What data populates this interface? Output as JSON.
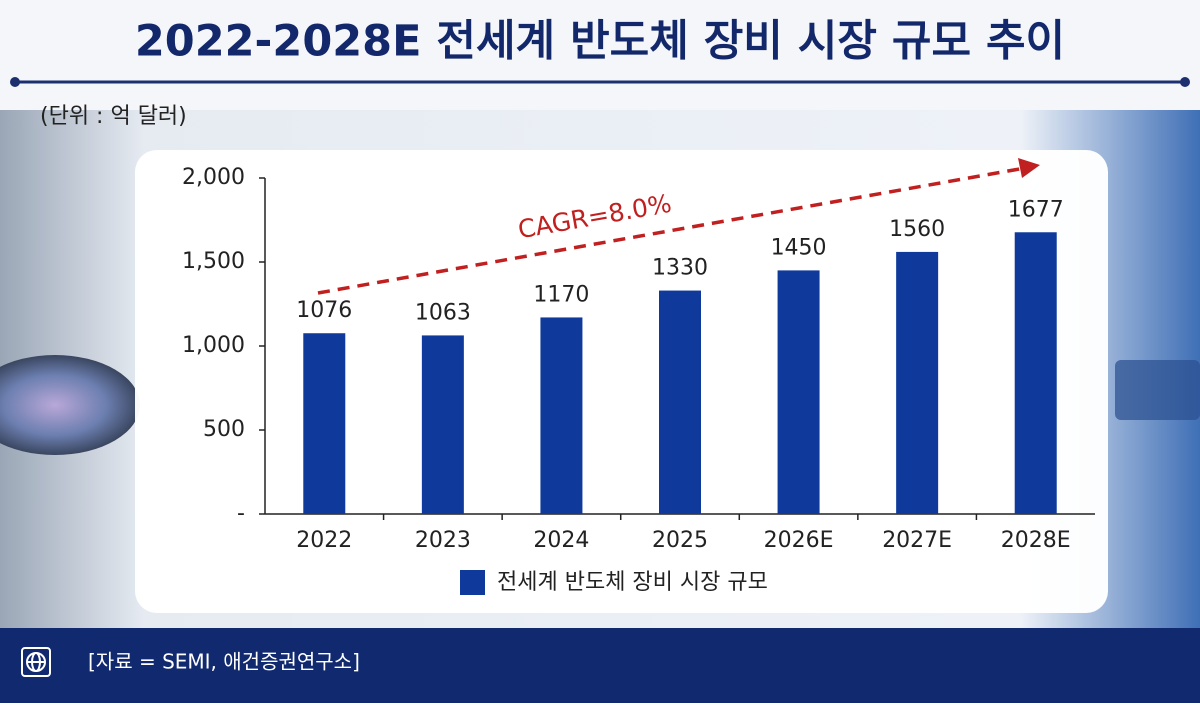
{
  "chart_data": {
    "type": "bar",
    "title": "2022-2028E 전세계 반도체 장비 시장 규모 추이",
    "subtitle": "(단위 : 억 달러)",
    "annotation": "CAGR=8.0%",
    "source": "[자료 = SEMI, 애건증권연구소]",
    "categories": [
      "2022",
      "2023",
      "2024",
      "2025",
      "2026E",
      "2027E",
      "2028E"
    ],
    "series": [
      {
        "name": "전세계 반도체 장비 시장 규모",
        "color": "#0f3a9c",
        "values": [
          1076,
          1063,
          1170,
          1330,
          1450,
          1560,
          1677
        ]
      }
    ],
    "ylim": [
      0,
      2000
    ],
    "yticks": [
      {
        "value": 0,
        "label": "-"
      },
      500,
      {
        "value": 1000,
        "label": "1,000"
      },
      {
        "value": 1500,
        "label": "1,500"
      },
      {
        "value": 2000,
        "label": "2,000"
      }
    ],
    "legend": "bottom"
  }
}
